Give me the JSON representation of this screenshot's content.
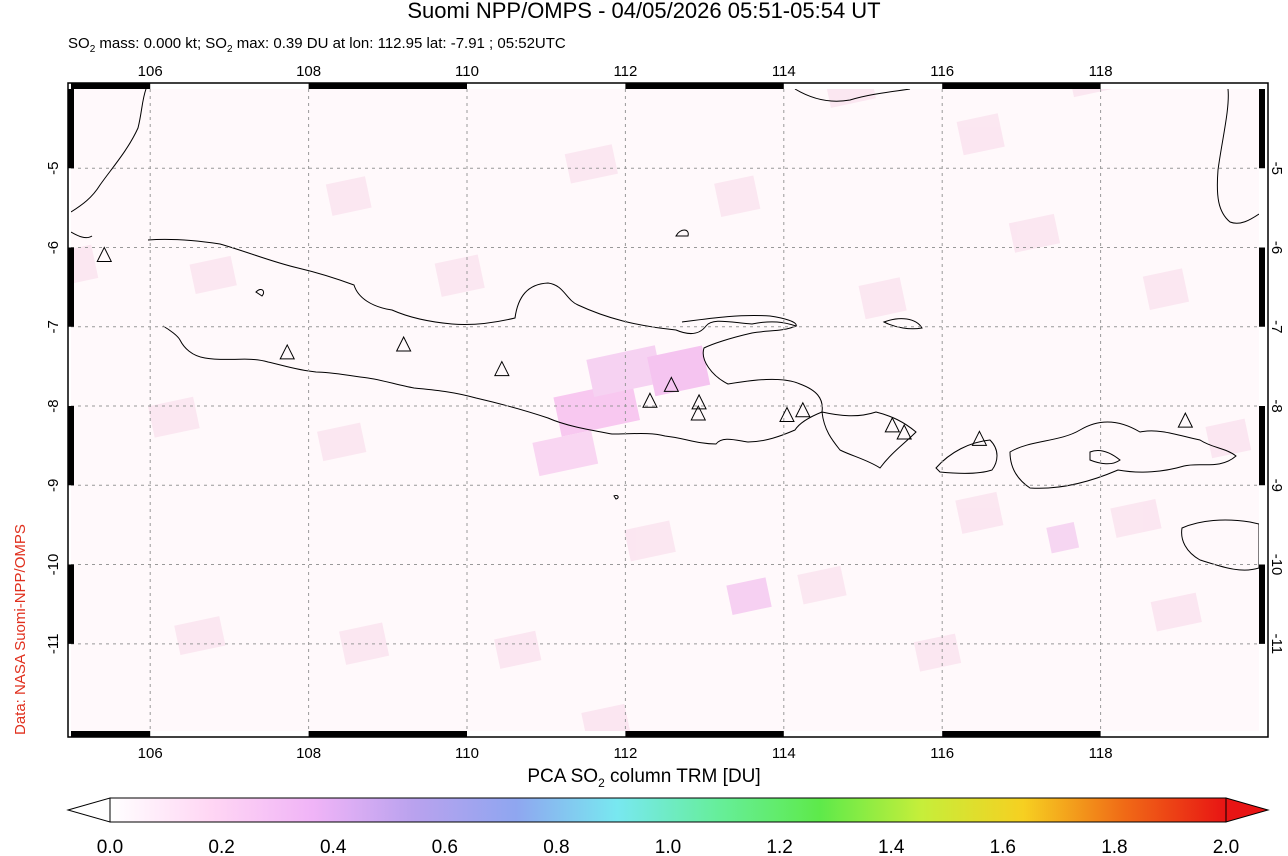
{
  "title": "Suomi NPP/OMPS - 04/05/2026 05:51-05:54 UT",
  "subtitle": {
    "part1": "SO",
    "sub1": "2",
    "part2": " mass: 0.000 kt; SO",
    "sub2": "2",
    "part3": " max: 0.39 DU at lon: 112.95 lat: -7.91 ; 05:52UTC"
  },
  "credit": "Data: NASA Suomi-NPP/OMPS",
  "map": {
    "lon_range": [
      105,
      120
    ],
    "lat_range": [
      -12.1,
      -4.0
    ],
    "lon_ticks": [
      106,
      108,
      110,
      112,
      114,
      116,
      118
    ],
    "lon_tick_labels": [
      "106",
      "108",
      "110",
      "112",
      "114",
      "116",
      "118"
    ],
    "lat_ticks": [
      -5,
      -6,
      -7,
      -8,
      -9,
      -10,
      -11
    ],
    "lat_tick_labels": [
      "-5",
      "-6",
      "-7",
      "-8",
      "-9",
      "-10",
      "-11"
    ],
    "grid": "dotted",
    "volcano_marker": "triangle-outline",
    "volcanoes": [
      {
        "lon": 105.42,
        "lat": -6.1
      },
      {
        "lon": 107.73,
        "lat": -7.33
      },
      {
        "lon": 109.2,
        "lat": -7.23
      },
      {
        "lon": 110.44,
        "lat": -7.54
      },
      {
        "lon": 112.31,
        "lat": -7.94
      },
      {
        "lon": 112.58,
        "lat": -7.74
      },
      {
        "lon": 112.93,
        "lat": -7.96
      },
      {
        "lon": 112.92,
        "lat": -8.1
      },
      {
        "lon": 114.04,
        "lat": -8.12
      },
      {
        "lon": 114.24,
        "lat": -8.06
      },
      {
        "lon": 115.37,
        "lat": -8.25
      },
      {
        "lon": 115.52,
        "lat": -8.34
      },
      {
        "lon": 116.47,
        "lat": -8.42
      },
      {
        "lon": 119.07,
        "lat": -8.19
      }
    ]
  },
  "colorbar": {
    "title_part1": "PCA SO",
    "title_sub": "2",
    "title_part2": " column TRM [DU]",
    "range": [
      0.0,
      2.0
    ],
    "tick_values": [
      0.0,
      0.2,
      0.4,
      0.6,
      0.8,
      1.0,
      1.2,
      1.4,
      1.6,
      1.8,
      2.0
    ],
    "tick_labels": [
      "0.0",
      "0.2",
      "0.4",
      "0.6",
      "0.8",
      "1.0",
      "1.2",
      "1.4",
      "1.6",
      "1.8",
      "2.0"
    ],
    "colors": [
      "#ffffff",
      "#ffd6f4",
      "#f0b4f7",
      "#b9a2ee",
      "#8fa6f0",
      "#78e8f0",
      "#66ee9a",
      "#5eea4a",
      "#c6ee3a",
      "#f6d021",
      "#f06a16",
      "#e81414"
    ],
    "under_color": "#ffffff",
    "over_color": "#e81414"
  }
}
